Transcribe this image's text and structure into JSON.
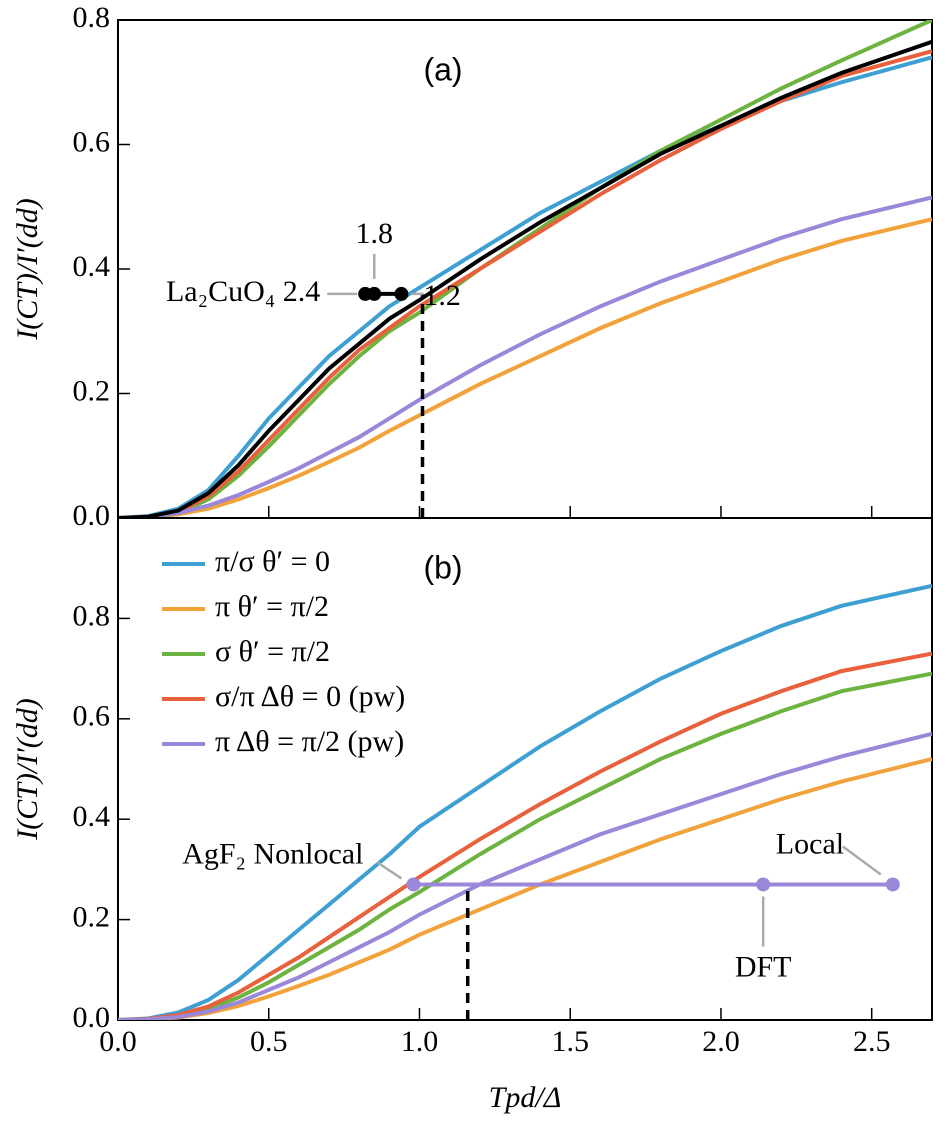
{
  "chart_data": [
    {
      "type": "line",
      "label": "(a)",
      "ylabel": "I(CT)/I′(dd)",
      "x": [
        0,
        0.1,
        0.2,
        0.3,
        0.4,
        0.5,
        0.6,
        0.7,
        0.8,
        0.9,
        1.0,
        1.2,
        1.4,
        1.6,
        1.8,
        2.0,
        2.2,
        2.4,
        2.7
      ],
      "xlim": [
        0,
        2.7
      ],
      "xticks": [
        0,
        0.5,
        1,
        1.5,
        2,
        2.5
      ],
      "ylim": [
        0,
        0.8
      ],
      "yticks": [
        {
          "value": 0,
          "label": "0.0"
        },
        {
          "value": 0.2,
          "label": "0.2"
        },
        {
          "value": 0.4,
          "label": "0.4"
        },
        {
          "value": 0.6,
          "label": "0.6"
        },
        {
          "value": 0.8,
          "label": "0.8"
        }
      ],
      "series": [
        {
          "color": "#3e9fd3",
          "values": [
            0,
            0.003,
            0.015,
            0.045,
            0.1,
            0.16,
            0.21,
            0.26,
            0.3,
            0.34,
            0.37,
            0.43,
            0.49,
            0.54,
            0.59,
            0.63,
            0.67,
            0.7,
            0.74
          ]
        },
        {
          "color": "#f2a23a",
          "values": [
            0,
            0.001,
            0.006,
            0.015,
            0.03,
            0.048,
            0.068,
            0.09,
            0.113,
            0.14,
            0.165,
            0.215,
            0.26,
            0.305,
            0.345,
            0.38,
            0.415,
            0.445,
            0.48
          ]
        },
        {
          "color": "#6cb33f",
          "values": [
            0,
            0.001,
            0.008,
            0.03,
            0.068,
            0.115,
            0.165,
            0.215,
            0.26,
            0.3,
            0.33,
            0.4,
            0.465,
            0.53,
            0.59,
            0.64,
            0.69,
            0.735,
            0.8
          ]
        },
        {
          "color": "#e8603c",
          "values": [
            0,
            0.002,
            0.01,
            0.035,
            0.075,
            0.125,
            0.175,
            0.225,
            0.27,
            0.305,
            0.34,
            0.4,
            0.46,
            0.52,
            0.575,
            0.625,
            0.67,
            0.71,
            0.75
          ]
        },
        {
          "color": "#9b87d9",
          "values": [
            0,
            0.002,
            0.008,
            0.02,
            0.037,
            0.058,
            0.08,
            0.105,
            0.13,
            0.16,
            0.19,
            0.245,
            0.295,
            0.34,
            0.38,
            0.415,
            0.45,
            0.48,
            0.515
          ]
        },
        {
          "color": "#000000",
          "values": [
            0,
            0.002,
            0.012,
            0.04,
            0.085,
            0.14,
            0.19,
            0.24,
            0.28,
            0.32,
            0.35,
            0.415,
            0.475,
            0.53,
            0.585,
            0.63,
            0.675,
            0.715,
            0.765
          ]
        }
      ],
      "markers": {
        "color": "#000000",
        "x": [
          0.82,
          0.85,
          0.94
        ],
        "y": [
          0.36,
          0.36,
          0.36
        ],
        "labels": [
          "La₂CuO₄ 2.4",
          "1.8",
          "1.2"
        ]
      },
      "drop_line": {
        "x": 1.01,
        "y": 0.36
      }
    },
    {
      "type": "line",
      "label": "(b)",
      "ylabel": "I(CT)/I′(dd)",
      "xlabel": "Tpd/Δ",
      "x": [
        0,
        0.1,
        0.2,
        0.3,
        0.4,
        0.5,
        0.6,
        0.7,
        0.8,
        0.9,
        1.0,
        1.2,
        1.4,
        1.6,
        1.8,
        2.0,
        2.2,
        2.4,
        2.7
      ],
      "xlim": [
        0,
        2.7
      ],
      "xticks": [
        {
          "value": 0,
          "label": "0.0"
        },
        {
          "value": 0.5,
          "label": "0.5"
        },
        {
          "value": 1,
          "label": "1.0"
        },
        {
          "value": 1.5,
          "label": "1.5"
        },
        {
          "value": 2,
          "label": "2.0"
        },
        {
          "value": 2.5,
          "label": "2.5"
        }
      ],
      "ylim": [
        0,
        1.0
      ],
      "yticks": [
        {
          "value": 0,
          "label": "0.0"
        },
        {
          "value": 0.2,
          "label": "0.2"
        },
        {
          "value": 0.4,
          "label": "0.4"
        },
        {
          "value": 0.6,
          "label": "0.6"
        },
        {
          "value": 0.8,
          "label": "0.8"
        }
      ],
      "series": [
        {
          "name": "π/σ θ′ = 0",
          "color": "#3e9fd3",
          "values": [
            0,
            0.003,
            0.015,
            0.04,
            0.08,
            0.13,
            0.18,
            0.23,
            0.28,
            0.33,
            0.385,
            0.465,
            0.545,
            0.615,
            0.68,
            0.735,
            0.785,
            0.825,
            0.865
          ]
        },
        {
          "name": "π θ′ = π/2",
          "color": "#f2a23a",
          "values": [
            0,
            0.001,
            0.005,
            0.014,
            0.028,
            0.047,
            0.068,
            0.09,
            0.115,
            0.14,
            0.17,
            0.22,
            0.27,
            0.315,
            0.36,
            0.4,
            0.44,
            0.475,
            0.52
          ]
        },
        {
          "name": "σ θ′ = π/2",
          "color": "#6cb33f",
          "values": [
            0,
            0.002,
            0.008,
            0.022,
            0.045,
            0.075,
            0.11,
            0.145,
            0.18,
            0.22,
            0.255,
            0.33,
            0.4,
            0.46,
            0.52,
            0.57,
            0.615,
            0.655,
            0.69
          ]
        },
        {
          "name": "σ/π Δθ = 0 (pw)",
          "color": "#e8603c",
          "values": [
            0,
            0.002,
            0.01,
            0.027,
            0.055,
            0.09,
            0.125,
            0.165,
            0.205,
            0.245,
            0.285,
            0.36,
            0.43,
            0.495,
            0.555,
            0.61,
            0.655,
            0.695,
            0.73
          ]
        },
        {
          "name": "π Δθ = π/2 (pw)",
          "color": "#9b87d9",
          "values": [
            0,
            0.001,
            0.006,
            0.017,
            0.035,
            0.06,
            0.085,
            0.115,
            0.145,
            0.175,
            0.21,
            0.27,
            0.32,
            0.37,
            0.41,
            0.45,
            0.49,
            0.525,
            0.57
          ]
        }
      ],
      "legend": "upper left",
      "markers": {
        "color": "#9b87d9",
        "x": [
          0.98,
          2.14,
          2.57
        ],
        "y": [
          0.27,
          0.27,
          0.27
        ],
        "labels": [
          "AgF₂ Nonlocal",
          "DFT",
          "Local"
        ]
      },
      "drop_line": {
        "x": 1.16,
        "y": 0.27
      }
    }
  ]
}
